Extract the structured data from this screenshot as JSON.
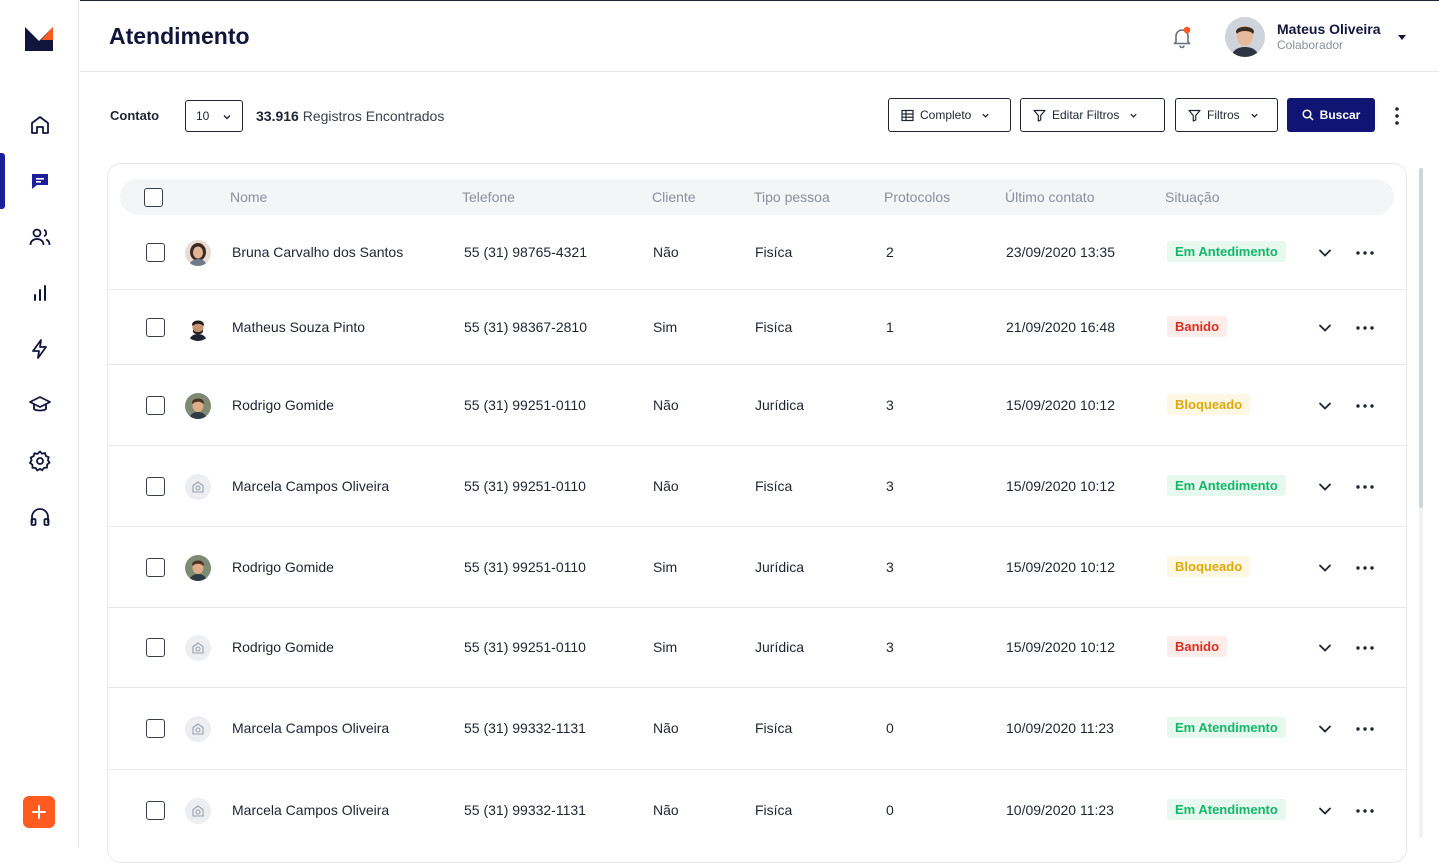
{
  "header": {
    "title": "Atendimento",
    "user_name": "Mateus Oliveira",
    "user_role": "Colaborador"
  },
  "sidebar": {
    "items": [
      {
        "name": "home-icon"
      },
      {
        "name": "chat-icon",
        "active": true
      },
      {
        "name": "users-icon"
      },
      {
        "name": "bar-chart-icon"
      },
      {
        "name": "lightning-icon"
      },
      {
        "name": "graduation-cap-icon"
      },
      {
        "name": "gear-icon"
      },
      {
        "name": "headphones-icon"
      }
    ]
  },
  "toolbar": {
    "contato_label": "Contato",
    "page_size": "10",
    "records_count": "33.916",
    "records_label": " Registros Encontrados",
    "completo_label": "Completo",
    "editar_filtros_label": "Editar Filtros",
    "filtros_label": "Filtros",
    "buscar_label": "Buscar"
  },
  "table": {
    "columns": [
      "Nome",
      "Telefone",
      "Cliente",
      "Tipo pessoa",
      "Protocolos",
      "Último contato",
      "Situação"
    ],
    "rows": [
      {
        "nome": "Bruna Carvalho dos Santos",
        "telefone": "55 (31) 98765-4321",
        "cliente": "Não",
        "tipo": "Fisíca",
        "protocolos": "2",
        "ultimo": "23/09/2020 13:35",
        "situacao": "Em Antedimento",
        "status": "green",
        "avatar": "woman"
      },
      {
        "nome": "Matheus Souza Pinto",
        "telefone": "55 (31) 98367-2810",
        "cliente": "Sim",
        "tipo": "Fisíca",
        "protocolos": "1",
        "ultimo": "21/09/2020 16:48",
        "situacao": "Banido",
        "status": "red",
        "avatar": "man-dark"
      },
      {
        "nome": "Rodrigo Gomide",
        "telefone": "55 (31) 99251-0110",
        "cliente": "Não",
        "tipo": "Jurídica",
        "protocolos": "3",
        "ultimo": "15/09/2020 10:12",
        "situacao": "Bloqueado",
        "status": "yellow",
        "avatar": "man"
      },
      {
        "nome": "Marcela Campos Oliveira",
        "telefone": "55 (31) 99251-0110",
        "cliente": "Não",
        "tipo": "Fisíca",
        "protocolos": "3",
        "ultimo": "15/09/2020 10:12",
        "situacao": "Em Antedimento",
        "status": "green",
        "avatar": "placeholder"
      },
      {
        "nome": "Rodrigo Gomide",
        "telefone": "55 (31) 99251-0110",
        "cliente": "Sim",
        "tipo": "Jurídica",
        "protocolos": "3",
        "ultimo": "15/09/2020 10:12",
        "situacao": "Bloqueado",
        "status": "yellow",
        "avatar": "man"
      },
      {
        "nome": "Rodrigo Gomide",
        "telefone": "55 (31) 99251-0110",
        "cliente": "Sim",
        "tipo": "Jurídica",
        "protocolos": "3",
        "ultimo": "15/09/2020 10:12",
        "situacao": "Banido",
        "status": "red",
        "avatar": "placeholder"
      },
      {
        "nome": "Marcela Campos Oliveira",
        "telefone": "55 (31) 99332-1131",
        "cliente": "Não",
        "tipo": "Fisíca",
        "protocolos": "0",
        "ultimo": "10/09/2020 11:23",
        "situacao": "Em Atendimento",
        "status": "green",
        "avatar": "placeholder"
      },
      {
        "nome": "Marcela Campos Oliveira",
        "telefone": "55 (31) 99332-1131",
        "cliente": "Não",
        "tipo": "Fisíca",
        "protocolos": "0",
        "ultimo": "10/09/2020 11:23",
        "situacao": "Em Atendimento",
        "status": "green",
        "avatar": "placeholder"
      }
    ]
  },
  "colors": {
    "accent": "#101574",
    "fab": "#ff5a1f",
    "green_text": "#12b76a",
    "green_bg": "#e7f8ef",
    "red_text": "#d92d20",
    "red_bg": "#fdecea",
    "yellow_text": "#dca90a",
    "yellow_bg": "#fdf7e3"
  }
}
